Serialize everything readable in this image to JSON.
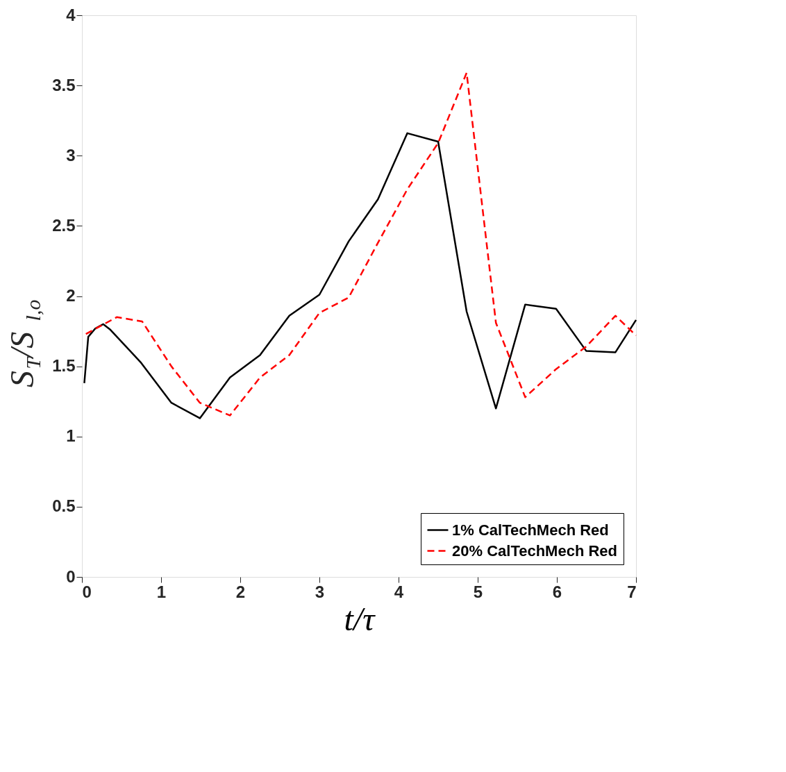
{
  "chart_data": {
    "type": "line",
    "xlabel": "t/τ",
    "ylabel": "S$_{T}$/S$_{l,o}$",
    "xlim": [
      0,
      7
    ],
    "xticks": [
      0,
      1,
      2,
      3,
      4,
      5,
      6,
      7
    ],
    "ylim": [
      0,
      4
    ],
    "yticks": [
      0,
      0.5,
      1,
      1.5,
      2,
      2.5,
      3,
      3.5,
      4
    ],
    "grid": false,
    "legend": "bottom right",
    "marker": "none",
    "series": [
      {
        "name": "1% CalTechMech Red",
        "color": "#000000",
        "line_style": "solid",
        "x": [
          0.03,
          0.08,
          0.17,
          0.27,
          0.36,
          0.74,
          1.13,
          1.49,
          1.87,
          2.25,
          2.62,
          3.0,
          3.37,
          3.74,
          4.11,
          4.5,
          4.86,
          5.23,
          5.6,
          5.99,
          6.37,
          6.74,
          7.0
        ],
        "values": [
          1.38,
          1.71,
          1.77,
          1.8,
          1.76,
          1.53,
          1.24,
          1.13,
          1.42,
          1.58,
          1.86,
          2.01,
          2.39,
          2.69,
          3.16,
          3.1,
          1.89,
          1.2,
          1.94,
          1.91,
          1.61,
          1.6,
          1.83
        ]
      },
      {
        "name": "20% CalTechMech Red",
        "color": "#ff0000",
        "line_style": "dashed",
        "x": [
          0.05,
          0.44,
          0.76,
          1.13,
          1.49,
          1.87,
          2.25,
          2.62,
          3.0,
          3.37,
          3.74,
          4.11,
          4.5,
          4.86,
          5.23,
          5.6,
          5.99,
          6.37,
          6.74,
          7.0
        ],
        "values": [
          1.73,
          1.85,
          1.82,
          1.5,
          1.24,
          1.15,
          1.42,
          1.58,
          1.88,
          1.99,
          2.38,
          2.76,
          3.09,
          3.59,
          1.81,
          1.28,
          1.48,
          1.64,
          1.86,
          1.72
        ]
      }
    ]
  }
}
